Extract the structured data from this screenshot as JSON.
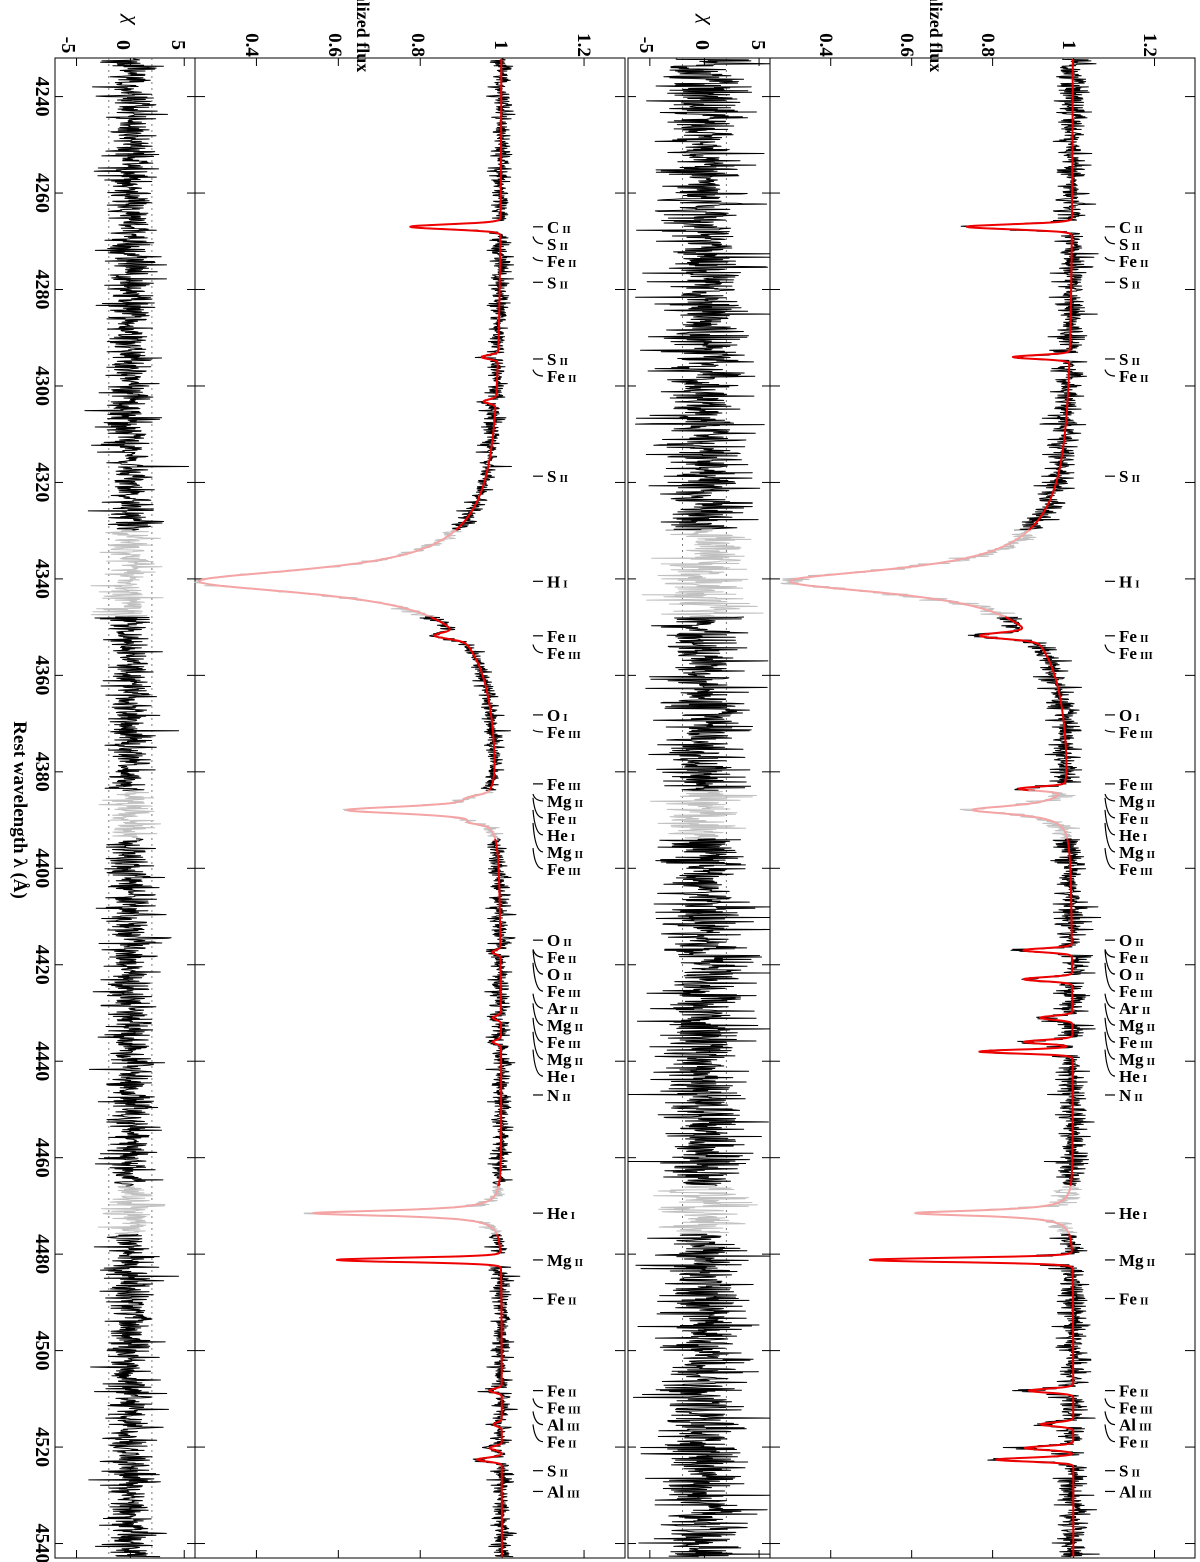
{
  "chart_data": {
    "type": "line",
    "xlabel": "Rest wavelength λ (Å)",
    "xlim": [
      4232,
      4543
    ],
    "x_ticks": [
      4240,
      4260,
      4280,
      4300,
      4320,
      4340,
      4360,
      4380,
      4400,
      4420,
      4440,
      4460,
      4480,
      4500,
      4520,
      4540
    ],
    "panels": [
      {
        "id": "left",
        "flux_label": "Normalized flux",
        "flux_ticks": [
          "0.4",
          "0.6",
          "0.8",
          "1",
          "1.2"
        ],
        "flux_lim": [
          0.25,
          1.3
        ],
        "chi_label": "χ",
        "chi_ticks": [
          "-5",
          "0",
          "5"
        ],
        "chi_lim": [
          -7,
          6
        ],
        "lines": [
          {
            "wl": 4267.0,
            "depth": 0.22,
            "width": 0.5
          },
          {
            "wl": 4294.0,
            "depth": 0.04,
            "width": 0.4
          },
          {
            "wl": 4303.2,
            "depth": 0.03,
            "width": 0.4
          },
          {
            "wl": 4351.8,
            "depth": 0.06,
            "width": 0.6
          },
          {
            "wl": 4385.4,
            "depth": 0.03,
            "width": 0.5
          },
          {
            "wl": 4388.0,
            "depth": 0.08,
            "width": 0.6
          },
          {
            "wl": 4390.5,
            "depth": 0.03,
            "width": 0.4
          },
          {
            "wl": 4417.4,
            "depth": 0.02,
            "width": 0.4
          },
          {
            "wl": 4431.0,
            "depth": 0.02,
            "width": 0.4
          },
          {
            "wl": 4436.0,
            "depth": 0.02,
            "width": 0.4
          },
          {
            "wl": 4481.2,
            "depth": 0.4,
            "width": 0.45
          },
          {
            "wl": 4508.3,
            "depth": 0.03,
            "width": 0.4
          },
          {
            "wl": 4515.3,
            "depth": 0.02,
            "width": 0.4
          },
          {
            "wl": 4520.2,
            "depth": 0.03,
            "width": 0.4
          },
          {
            "wl": 4522.6,
            "depth": 0.06,
            "width": 0.4
          }
        ],
        "broad_lines": [
          {
            "wl": 4340.5,
            "depth": 0.62,
            "width": 3.0
          },
          {
            "wl": 4387.9,
            "depth": 0.29,
            "width": 1.1
          },
          {
            "wl": 4471.5,
            "depth": 0.46,
            "width": 0.7
          }
        ],
        "noise_flux": 0.012,
        "noise_chi": 1.1
      },
      {
        "id": "right",
        "flux_label": "Normalized flux",
        "flux_ticks": [
          "0.4",
          "0.6",
          "0.8",
          "1",
          "1.2"
        ],
        "flux_lim": [
          0.25,
          1.3
        ],
        "chi_label": "χ",
        "chi_ticks": [
          "-5",
          "0",
          "5"
        ],
        "chi_lim": [
          -7,
          6
        ],
        "lines": [
          {
            "wl": 4267.0,
            "depth": 0.26,
            "width": 0.5
          },
          {
            "wl": 4294.0,
            "depth": 0.14,
            "width": 0.4
          },
          {
            "wl": 4351.8,
            "depth": 0.13,
            "width": 0.6
          },
          {
            "wl": 4383.5,
            "depth": 0.11,
            "width": 0.4
          },
          {
            "wl": 4417.0,
            "depth": 0.12,
            "width": 0.4
          },
          {
            "wl": 4423.0,
            "depth": 0.12,
            "width": 0.4
          },
          {
            "wl": 4431.0,
            "depth": 0.08,
            "width": 0.4
          },
          {
            "wl": 4436.0,
            "depth": 0.12,
            "width": 0.4
          },
          {
            "wl": 4438.0,
            "depth": 0.23,
            "width": 0.4
          },
          {
            "wl": 4481.2,
            "depth": 0.5,
            "width": 0.45
          },
          {
            "wl": 4508.3,
            "depth": 0.11,
            "width": 0.4
          },
          {
            "wl": 4515.3,
            "depth": 0.08,
            "width": 0.4
          },
          {
            "wl": 4520.2,
            "depth": 0.12,
            "width": 0.4
          },
          {
            "wl": 4522.6,
            "depth": 0.19,
            "width": 0.4
          }
        ],
        "broad_lines": [
          {
            "wl": 4340.5,
            "depth": 0.58,
            "width": 3.0
          },
          {
            "wl": 4387.9,
            "depth": 0.24,
            "width": 1.1
          },
          {
            "wl": 4471.5,
            "depth": 0.39,
            "width": 0.7
          }
        ],
        "noise_flux": 0.02,
        "noise_chi": 2.0
      }
    ],
    "masked_ranges": [
      [
        4330,
        4348
      ],
      [
        4384,
        4394
      ],
      [
        4466,
        4476
      ]
    ],
    "line_ids": [
      {
        "label": "C",
        "stage": "II",
        "wl": 4267.0
      },
      {
        "label": "S",
        "stage": "II",
        "wl": 4269.0
      },
      {
        "label": "Fe",
        "stage": "II",
        "wl": 4273.3
      },
      {
        "label": "S",
        "stage": "II",
        "wl": 4278.5
      },
      {
        "label": "S",
        "stage": "II",
        "wl": 4294.4
      },
      {
        "label": "Fe",
        "stage": "II",
        "wl": 4296.6
      },
      {
        "label": "S",
        "stage": "II",
        "wl": 4318.7
      },
      {
        "label": "H",
        "stage": "I",
        "wl": 4340.5
      },
      {
        "label": "Fe",
        "stage": "II",
        "wl": 4351.8
      },
      {
        "label": "Fe",
        "stage": "III",
        "wl": 4353.6
      },
      {
        "label": "O",
        "stage": "I",
        "wl": 4368.2
      },
      {
        "label": "Fe",
        "stage": "III",
        "wl": 4371.3
      },
      {
        "label": "Fe",
        "stage": "III",
        "wl": 4382.5
      },
      {
        "label": "Mg",
        "stage": "II",
        "wl": 4384.6
      },
      {
        "label": "Fe",
        "stage": "II",
        "wl": 4385.4
      },
      {
        "label": "He",
        "stage": "I",
        "wl": 4387.9
      },
      {
        "label": "Mg",
        "stage": "II",
        "wl": 4390.6
      },
      {
        "label": "Fe",
        "stage": "III",
        "wl": 4395.8
      },
      {
        "label": "O",
        "stage": "II",
        "wl": 4414.9
      },
      {
        "label": "Fe",
        "stage": "II",
        "wl": 4416.8
      },
      {
        "label": "O",
        "stage": "II",
        "wl": 4417.0
      },
      {
        "label": "Fe",
        "stage": "III",
        "wl": 4419.6
      },
      {
        "label": "Ar",
        "stage": "II",
        "wl": 4426.0
      },
      {
        "label": "Mg",
        "stage": "II",
        "wl": 4428.0
      },
      {
        "label": "Fe",
        "stage": "III",
        "wl": 4431.0
      },
      {
        "label": "Mg",
        "stage": "II",
        "wl": 4433.9
      },
      {
        "label": "He",
        "stage": "I",
        "wl": 4437.6
      },
      {
        "label": "N",
        "stage": "II",
        "wl": 4447.0
      },
      {
        "label": "He",
        "stage": "I",
        "wl": 4471.5
      },
      {
        "label": "Mg",
        "stage": "II",
        "wl": 4481.2
      },
      {
        "label": "Fe",
        "stage": "II",
        "wl": 4489.2
      },
      {
        "label": "Fe",
        "stage": "II",
        "wl": 4508.3
      },
      {
        "label": "Fe",
        "stage": "III",
        "wl": 4509.9
      },
      {
        "label": "Al",
        "stage": "III",
        "wl": 4512.6
      },
      {
        "label": "Fe",
        "stage": "II",
        "wl": 4515.3
      },
      {
        "label": "S",
        "stage": "II",
        "wl": 4524.9
      },
      {
        "label": "Al",
        "stage": "III",
        "wl": 4529.2
      }
    ],
    "colors": {
      "observed": "#000000",
      "observed_masked": "#c0c0c0",
      "model": "#ee0000",
      "model_masked": "#f4a4a4",
      "frame": "#000000"
    }
  }
}
